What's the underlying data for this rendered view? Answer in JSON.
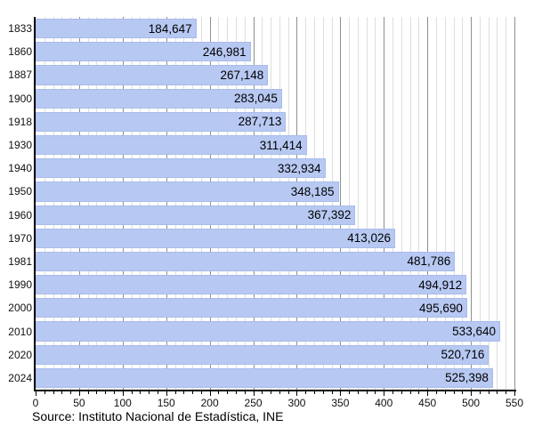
{
  "chart_data": {
    "type": "bar",
    "orientation": "horizontal",
    "title": "",
    "categories": [
      "1833",
      "1860",
      "1887",
      "1900",
      "1918",
      "1930",
      "1940",
      "1950",
      "1960",
      "1970",
      "1981",
      "1990",
      "2000",
      "2010",
      "2020",
      "2024"
    ],
    "values": [
      184647,
      246981,
      267148,
      283045,
      287713,
      311414,
      332934,
      348185,
      367392,
      413026,
      481786,
      494912,
      495690,
      533640,
      520716,
      525398
    ],
    "xlim": [
      0,
      550
    ],
    "xticks": [
      0,
      50,
      100,
      150,
      200,
      250,
      300,
      350,
      400,
      450,
      500,
      550
    ],
    "minor_step": 10,
    "x_value_scale": 1000,
    "grid": true,
    "legend": false
  },
  "source_note": "Source: Instituto Nacional de Estadística, INE",
  "colors": {
    "bar_fill": "#b7c8f2",
    "bar_border": "#a8bbea",
    "grid_major": "#8f8f8f",
    "grid_minor": "#dedede",
    "axis": "#000000"
  }
}
